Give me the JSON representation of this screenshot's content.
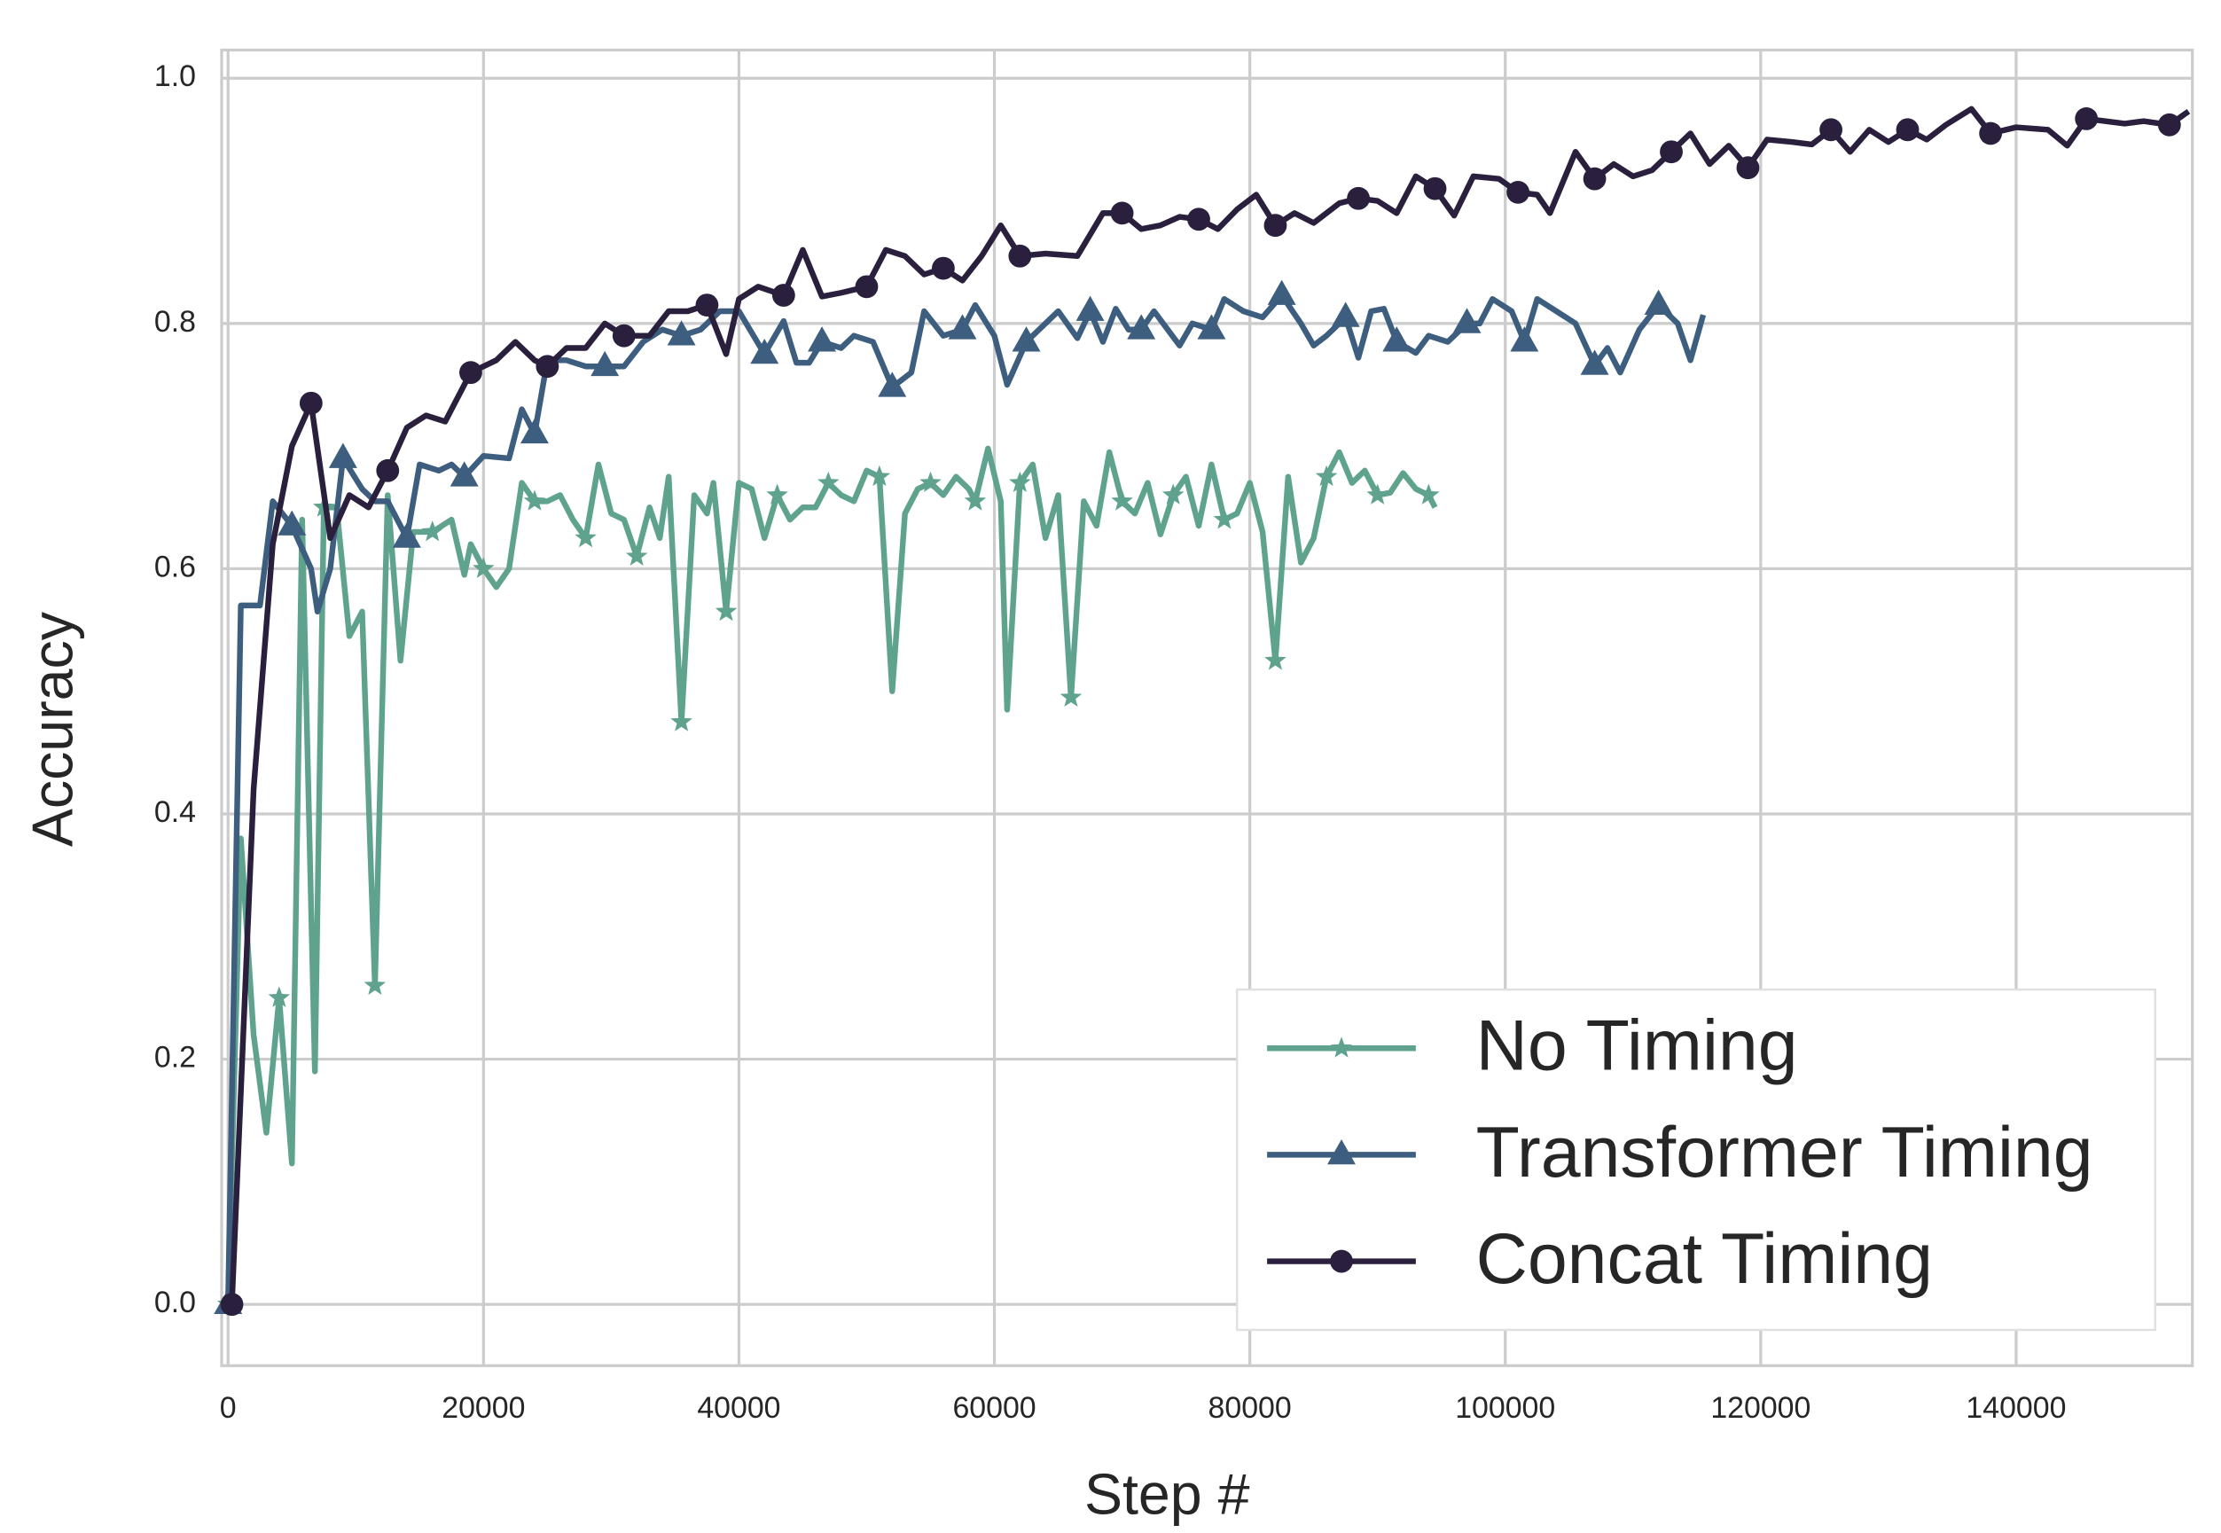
{
  "chart_data": {
    "type": "line",
    "x_label": "Step #",
    "y_label": "Accuracy",
    "xlim": [
      -500,
      153800
    ],
    "ylim": [
      -0.05,
      1.023
    ],
    "xticks": [
      0,
      20000,
      40000,
      60000,
      80000,
      100000,
      120000,
      140000
    ],
    "yticks": [
      {
        "value": 0,
        "label": "0.0"
      },
      0.2,
      0.4,
      0.6,
      0.8,
      {
        "value": 1,
        "label": "1.0"
      }
    ],
    "grid": true,
    "legend": "lower right",
    "markevery": 4,
    "series": [
      {
        "name": "No Timing",
        "color": "#5fa38e",
        "marker": "star",
        "x": [
          0,
          1000,
          2000,
          3000,
          4000,
          5000,
          5800,
          6800,
          7500,
          8500,
          9500,
          10500,
          11500,
          12500,
          13500,
          14500,
          16000,
          17500,
          18500,
          19000,
          20000,
          21000,
          22000,
          23000,
          24000,
          25000,
          26000,
          27000,
          28000,
          29000,
          30000,
          31000,
          32000,
          33000,
          33800,
          34500,
          35500,
          36500,
          37500,
          38000,
          39000,
          40000,
          41000,
          42000,
          43000,
          44000,
          45000,
          46000,
          47000,
          48000,
          49000,
          50000,
          51000,
          52000,
          53000,
          54000,
          55000,
          56000,
          57000,
          58000,
          58500,
          59500,
          60500,
          61000,
          62000,
          63000,
          64000,
          65000,
          66000,
          67000,
          68000,
          69000,
          70000,
          71000,
          72000,
          73000,
          74000,
          75000,
          76000,
          77000,
          78000,
          79000,
          80000,
          81000,
          82000,
          83000,
          84000,
          85000,
          86000,
          87000,
          88000,
          89000,
          90000,
          91000,
          92000,
          93000,
          94000,
          94500
        ],
        "values": [
          0.0,
          0.38,
          0.22,
          0.14,
          0.25,
          0.115,
          0.64,
          0.19,
          0.65,
          0.65,
          0.545,
          0.565,
          0.26,
          0.66,
          0.525,
          0.63,
          0.63,
          0.64,
          0.595,
          0.62,
          0.6,
          0.585,
          0.6,
          0.67,
          0.655,
          0.655,
          0.66,
          0.64,
          0.625,
          0.685,
          0.645,
          0.64,
          0.61,
          0.65,
          0.625,
          0.675,
          0.475,
          0.66,
          0.645,
          0.67,
          0.565,
          0.67,
          0.665,
          0.625,
          0.66,
          0.64,
          0.65,
          0.65,
          0.67,
          0.66,
          0.655,
          0.68,
          0.675,
          0.5,
          0.645,
          0.665,
          0.67,
          0.66,
          0.675,
          0.665,
          0.655,
          0.698,
          0.655,
          0.485,
          0.67,
          0.685,
          0.625,
          0.66,
          0.495,
          0.655,
          0.635,
          0.695,
          0.655,
          0.645,
          0.67,
          0.628,
          0.66,
          0.675,
          0.635,
          0.685,
          0.64,
          0.645,
          0.67,
          0.63,
          0.525,
          0.675,
          0.605,
          0.625,
          0.675,
          0.695,
          0.67,
          0.68,
          0.66,
          0.662,
          0.678,
          0.665,
          0.66,
          0.65
        ]
      },
      {
        "name": "Transformer Timing",
        "color": "#3d5e7e",
        "marker": "triangle",
        "x": [
          0,
          1000,
          2500,
          3500,
          5000,
          6500,
          7000,
          8000,
          9000,
          10500,
          11500,
          12500,
          14000,
          15000,
          16500,
          17500,
          18500,
          20000,
          22000,
          23000,
          24000,
          25000,
          26500,
          28000,
          29500,
          31000,
          32500,
          34000,
          35500,
          37000,
          38500,
          40000,
          42000,
          43500,
          44500,
          45500,
          46500,
          48000,
          49000,
          50500,
          52000,
          53500,
          54500,
          56000,
          57500,
          58500,
          60000,
          61000,
          62500,
          64000,
          65000,
          66500,
          67500,
          68500,
          69500,
          70500,
          71500,
          72500,
          74500,
          75500,
          77000,
          78000,
          79500,
          81000,
          82500,
          84000,
          85000,
          86000,
          87500,
          88500,
          89500,
          90500,
          91500,
          93000,
          94000,
          95500,
          97000,
          98000,
          99000,
          100500,
          101500,
          102500,
          104000,
          105500,
          107000,
          108000,
          109000,
          110500,
          112000,
          113500,
          114500,
          115500
        ],
        "values": [
          0.0,
          0.57,
          0.57,
          0.655,
          0.635,
          0.6,
          0.565,
          0.6,
          0.69,
          0.665,
          0.655,
          0.655,
          0.625,
          0.685,
          0.68,
          0.685,
          0.675,
          0.692,
          0.69,
          0.73,
          0.71,
          0.77,
          0.77,
          0.765,
          0.765,
          0.765,
          0.785,
          0.795,
          0.79,
          0.795,
          0.81,
          0.81,
          0.775,
          0.802,
          0.768,
          0.768,
          0.785,
          0.78,
          0.79,
          0.785,
          0.748,
          0.76,
          0.81,
          0.79,
          0.795,
          0.815,
          0.79,
          0.75,
          0.785,
          0.8,
          0.81,
          0.788,
          0.81,
          0.785,
          0.812,
          0.795,
          0.795,
          0.81,
          0.782,
          0.8,
          0.795,
          0.82,
          0.81,
          0.805,
          0.823,
          0.8,
          0.782,
          0.79,
          0.805,
          0.772,
          0.81,
          0.812,
          0.785,
          0.776,
          0.79,
          0.785,
          0.8,
          0.8,
          0.82,
          0.81,
          0.785,
          0.82,
          0.81,
          0.8,
          0.766,
          0.78,
          0.76,
          0.795,
          0.815,
          0.8,
          0.77,
          0.807
        ]
      },
      {
        "name": "Concat Timing",
        "color": "#2a1f3d",
        "marker": "circle",
        "x": [
          300,
          2000,
          3500,
          5000,
          6500,
          8000,
          9500,
          11000,
          12500,
          14000,
          15500,
          17000,
          19000,
          21000,
          22500,
          24000,
          25000,
          26500,
          28000,
          29500,
          31000,
          33000,
          34500,
          36000,
          37500,
          39000,
          40000,
          41500,
          43500,
          45000,
          46500,
          48000,
          50000,
          51500,
          53000,
          54500,
          56000,
          57500,
          59000,
          60500,
          62000,
          64000,
          66500,
          68500,
          70000,
          71500,
          73000,
          74500,
          76000,
          77500,
          79000,
          80500,
          82000,
          83500,
          85000,
          87000,
          88500,
          90000,
          91500,
          93000,
          94500,
          96000,
          97500,
          99500,
          101000,
          102500,
          103500,
          105500,
          107000,
          108500,
          110000,
          111500,
          113000,
          114500,
          116000,
          117500,
          119000,
          120500,
          122500,
          124000,
          125500,
          127000,
          128500,
          130000,
          131500,
          133000,
          134500,
          136500,
          138000,
          140000,
          142500,
          144000,
          145500,
          147000,
          148500,
          150000,
          152000,
          153500
        ],
        "values": [
          0.0,
          0.42,
          0.62,
          0.7,
          0.735,
          0.625,
          0.66,
          0.65,
          0.68,
          0.715,
          0.725,
          0.72,
          0.76,
          0.77,
          0.785,
          0.77,
          0.765,
          0.78,
          0.78,
          0.8,
          0.79,
          0.79,
          0.81,
          0.81,
          0.815,
          0.775,
          0.82,
          0.83,
          0.823,
          0.86,
          0.822,
          0.825,
          0.83,
          0.86,
          0.855,
          0.84,
          0.845,
          0.835,
          0.855,
          0.88,
          0.855,
          0.857,
          0.855,
          0.89,
          0.89,
          0.877,
          0.88,
          0.887,
          0.885,
          0.877,
          0.893,
          0.905,
          0.88,
          0.89,
          0.882,
          0.898,
          0.902,
          0.9,
          0.89,
          0.92,
          0.91,
          0.888,
          0.92,
          0.918,
          0.907,
          0.905,
          0.89,
          0.94,
          0.918,
          0.93,
          0.92,
          0.925,
          0.94,
          0.955,
          0.93,
          0.945,
          0.927,
          0.95,
          0.948,
          0.946,
          0.958,
          0.94,
          0.958,
          0.948,
          0.958,
          0.95,
          0.962,
          0.975,
          0.955,
          0.96,
          0.958,
          0.945,
          0.967,
          0.965,
          0.963,
          0.965,
          0.962,
          0.973
        ]
      }
    ]
  }
}
